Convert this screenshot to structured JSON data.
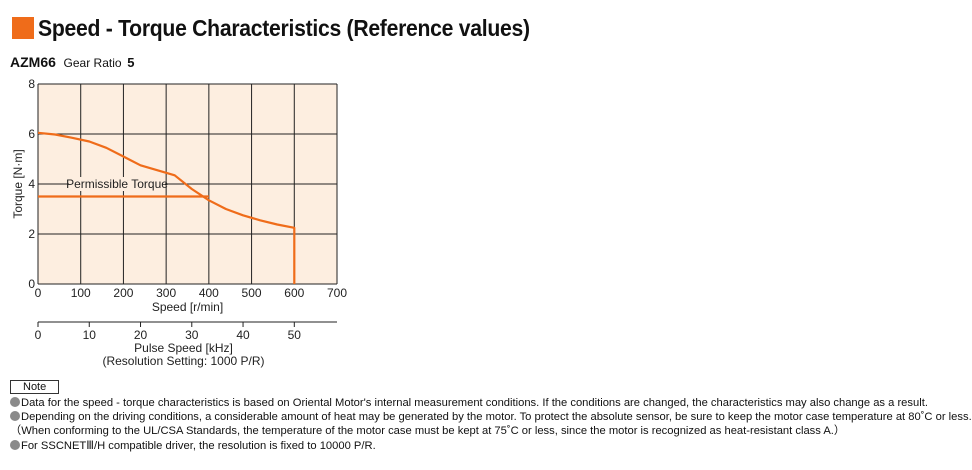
{
  "header": {
    "title": "Speed - Torque Characteristics (Reference values)",
    "accent_color": "#ef6c1a"
  },
  "product": {
    "model": "AZM66",
    "ratio_label": "Gear Ratio",
    "ratio_value": "5"
  },
  "chart_data": {
    "type": "line",
    "xlabel": "Speed [r/min]",
    "ylabel": "Torque [N·m]",
    "xlim": [
      0,
      700
    ],
    "ylim": [
      0,
      8
    ],
    "x_ticks": [
      0,
      100,
      200,
      300,
      400,
      500,
      600,
      700
    ],
    "y_ticks": [
      0,
      2,
      4,
      6,
      8
    ],
    "grid": true,
    "plot_background": "#fdeee0",
    "line_color": "#ef6c1a",
    "series": [
      {
        "values": [
          [
            0,
            6.05
          ],
          [
            40,
            5.98
          ],
          [
            80,
            5.85
          ],
          [
            120,
            5.7
          ],
          [
            160,
            5.45
          ],
          [
            200,
            5.1
          ],
          [
            240,
            4.75
          ],
          [
            280,
            4.55
          ],
          [
            320,
            4.35
          ],
          [
            360,
            3.8
          ],
          [
            400,
            3.35
          ],
          [
            440,
            3.0
          ],
          [
            480,
            2.75
          ],
          [
            520,
            2.55
          ],
          [
            560,
            2.38
          ],
          [
            600,
            2.25
          ],
          [
            600,
            0
          ]
        ]
      },
      {
        "name": "Permissible Torque",
        "values": [
          [
            0,
            3.5
          ],
          [
            400,
            3.5
          ]
        ]
      }
    ],
    "annotations": [
      {
        "text": "Permissible Torque",
        "x": 185,
        "y": 4.0
      }
    ],
    "secondary_axis": {
      "label": "Pulse Speed [kHz]",
      "sublabel": "(Resolution Setting: 1000 P/R)",
      "ticks": [
        0,
        10,
        20,
        30,
        40,
        50
      ],
      "range": [
        0,
        58.33
      ]
    }
  },
  "notes": {
    "label": "Note",
    "items": [
      "Data for the speed - torque characteristics is based on Oriental Motor's internal measurement conditions. If the conditions are changed, the characteristics may also change as a result.",
      "Depending on the driving conditions, a considerable amount of heat may be generated by the motor.  To protect the absolute sensor, be sure to keep the motor case temperature at 80˚C or less.",
      "（When conforming to the UL/CSA Standards, the temperature of the motor case must be kept at 75˚C or less, since the motor is recognized as heat-resistant class A.）",
      "For SSCNETⅢ/H compatible driver, the resolution is fixed to 10000 P/R."
    ]
  }
}
